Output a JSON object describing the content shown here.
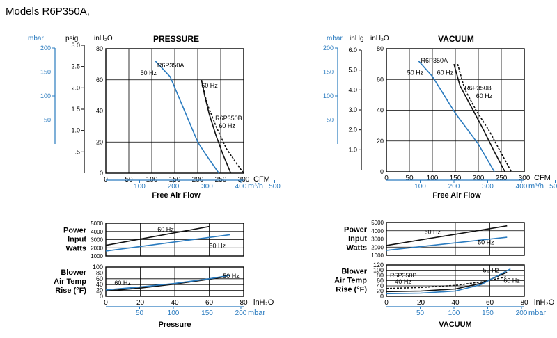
{
  "page": {
    "title": "Models R6P350A,"
  },
  "colors": {
    "blue": "#2a7bbf",
    "black": "#111111",
    "grid": "#000000"
  },
  "chart_data": [
    {
      "id": "pressure_main",
      "type": "line",
      "title": "PRESSURE",
      "xlabel": "Free Air Flow",
      "xlim": [
        0,
        300
      ],
      "ylim": [
        0,
        80
      ],
      "x_ticks": [
        0,
        50,
        100,
        150,
        200,
        250,
        300
      ],
      "y_ticks": [
        0,
        20,
        40,
        60,
        80
      ],
      "x_unit": "CFM",
      "y_unit": "inH2O",
      "grid": true,
      "alt_x_axis": {
        "unit": "m3/h",
        "ticks": [
          "100",
          "200",
          "300",
          "400",
          "500"
        ]
      },
      "alt_y_axes": [
        {
          "unit": "psig",
          "ticks": [
            ".5",
            "1.0",
            "1.5",
            "2.0",
            "2.5",
            "3.0"
          ]
        },
        {
          "unit": "mbar",
          "ticks": [
            "50",
            "100",
            "150",
            "200"
          ]
        }
      ],
      "series": [
        {
          "name": "R6P350A",
          "color": "blue",
          "dash": "solid",
          "points": [
            [
              108,
              72
            ],
            [
              140,
              62
            ],
            [
              160,
              48
            ],
            [
              180,
              34
            ],
            [
              200,
              20
            ],
            [
              220,
              11
            ],
            [
              246,
              0
            ]
          ]
        },
        {
          "name": "R6P350A",
          "color": "black",
          "dash": "solid",
          "points": [
            [
              208,
              60
            ],
            [
              215,
              50
            ],
            [
              225,
              38
            ],
            [
              240,
              24
            ],
            [
              255,
              12
            ],
            [
              272,
              0
            ]
          ]
        },
        {
          "name": "R6P350B",
          "color": "black",
          "dash": "dashed",
          "points": [
            [
              208,
              60
            ],
            [
              220,
              45
            ],
            [
              240,
              30
            ],
            [
              262,
              16
            ],
            [
              285,
              6
            ],
            [
              300,
              0
            ]
          ]
        }
      ],
      "annotations": [
        {
          "text": "R6P350A",
          "x": 112,
          "y": 68
        },
        {
          "text": "50 Hz",
          "x": 75,
          "y": 63
        },
        {
          "text": "60 Hz",
          "x": 208,
          "y": 55
        },
        {
          "text": "R6P350B",
          "x": 238,
          "y": 34
        },
        {
          "text": "60 Hz",
          "x": 246,
          "y": 29
        }
      ]
    },
    {
      "id": "vacuum_main",
      "type": "line",
      "title": "VACUUM",
      "xlabel": "Free Air Flow",
      "xlim": [
        0,
        300
      ],
      "ylim": [
        0,
        80
      ],
      "x_ticks": [
        0,
        50,
        100,
        150,
        200,
        250,
        300
      ],
      "y_ticks": [
        0,
        20,
        40,
        60,
        80
      ],
      "x_unit": "CFM",
      "y_unit": "inH2O",
      "grid": true,
      "alt_x_axis": {
        "unit": "m3/h",
        "ticks": [
          "100",
          "200",
          "300",
          "400",
          "500"
        ]
      },
      "alt_y_axes": [
        {
          "unit": "inHg",
          "ticks": [
            "1.0",
            "2.0",
            "3.0",
            "4.0",
            "5.0",
            "6.0"
          ]
        },
        {
          "unit": "mbar",
          "ticks": [
            "50",
            "100",
            "150",
            "200"
          ]
        }
      ],
      "series": [
        {
          "name": "R6P350A",
          "color": "blue",
          "dash": "solid",
          "points": [
            [
              70,
              72
            ],
            [
              100,
              62
            ],
            [
              150,
              38
            ],
            [
              200,
              18
            ],
            [
              235,
              0
            ]
          ]
        },
        {
          "name": "R6P350A",
          "color": "black",
          "dash": "solid",
          "points": [
            [
              147,
              70
            ],
            [
              160,
              56
            ],
            [
              185,
              42
            ],
            [
              210,
              28
            ],
            [
              235,
              13
            ],
            [
              258,
              0
            ]
          ]
        },
        {
          "name": "R6P350B",
          "color": "black",
          "dash": "dashed",
          "points": [
            [
              155,
              70
            ],
            [
              170,
              54
            ],
            [
              195,
              40
            ],
            [
              225,
              26
            ],
            [
              250,
              12
            ],
            [
              272,
              0
            ]
          ]
        }
      ],
      "annotations": [
        {
          "text": "R6P350A",
          "x": 75,
          "y": 71
        },
        {
          "text": "50 Hz",
          "x": 45,
          "y": 63
        },
        {
          "text": "60 Hz",
          "x": 110,
          "y": 63
        },
        {
          "text": "R6P350B",
          "x": 170,
          "y": 53
        },
        {
          "text": "60 Hz",
          "x": 195,
          "y": 48
        }
      ]
    },
    {
      "id": "pressure_power",
      "type": "line",
      "title": "",
      "ylabel": [
        "Power",
        "Input",
        "Watts"
      ],
      "xlim": [
        0,
        80
      ],
      "ylim": [
        1000,
        5000
      ],
      "y_ticks": [
        1000,
        2000,
        3000,
        4000,
        5000
      ],
      "grid": true,
      "series": [
        {
          "name": "60 Hz",
          "color": "black",
          "dash": "solid",
          "points": [
            [
              0,
              2300
            ],
            [
              60,
              4600
            ]
          ]
        },
        {
          "name": "50 Hz",
          "color": "blue",
          "dash": "solid",
          "points": [
            [
              0,
              1600
            ],
            [
              72,
              3600
            ]
          ]
        }
      ],
      "annotations": [
        {
          "text": "60 Hz",
          "x": 30,
          "y": 4000
        },
        {
          "text": "50 Hz",
          "x": 60,
          "y": 2000
        }
      ]
    },
    {
      "id": "pressure_temp",
      "type": "line",
      "title": "",
      "ylabel": [
        "Blower",
        "Air Temp",
        "Rise (°F)"
      ],
      "xlim": [
        0,
        80
      ],
      "ylim": [
        0,
        100
      ],
      "x_ticks": [
        0,
        20,
        40,
        60,
        80
      ],
      "y_ticks": [
        0,
        20,
        40,
        60,
        80,
        100
      ],
      "x_unit": "inH2O",
      "xlabel": "Pressure",
      "alt_x_axis": {
        "unit": "mbar",
        "ticks": [
          "50",
          "100",
          "150",
          "200"
        ]
      },
      "grid": true,
      "series": [
        {
          "name": "60 Hz",
          "color": "black",
          "dash": "solid",
          "points": [
            [
              0,
              18
            ],
            [
              20,
              28
            ],
            [
              40,
              42
            ],
            [
              60,
              58
            ],
            [
              70,
              68
            ]
          ]
        },
        {
          "name": "50 Hz",
          "color": "blue",
          "dash": "solid",
          "points": [
            [
              0,
              22
            ],
            [
              20,
              32
            ],
            [
              40,
              44
            ],
            [
              60,
              60
            ],
            [
              72,
              72
            ]
          ]
        }
      ],
      "annotations": [
        {
          "text": "60 Hz",
          "x": 5,
          "y": 38
        },
        {
          "text": "50 Hz",
          "x": 68,
          "y": 62
        }
      ]
    },
    {
      "id": "vacuum_power",
      "type": "line",
      "title": "",
      "ylabel": [
        "Power",
        "Input",
        "Watts"
      ],
      "xlim": [
        0,
        80
      ],
      "ylim": [
        1000,
        5000
      ],
      "y_ticks": [
        1000,
        2000,
        3000,
        4000,
        5000
      ],
      "grid": true,
      "series": [
        {
          "name": "60 Hz",
          "color": "black",
          "dash": "solid",
          "points": [
            [
              0,
              2200
            ],
            [
              70,
              4600
            ]
          ]
        },
        {
          "name": "50 Hz",
          "color": "blue",
          "dash": "solid",
          "points": [
            [
              0,
              1600
            ],
            [
              70,
              3200
            ]
          ]
        }
      ],
      "annotations": [
        {
          "text": "60 Hz",
          "x": 22,
          "y": 3600
        },
        {
          "text": "50 Hz",
          "x": 53,
          "y": 2300
        }
      ]
    },
    {
      "id": "vacuum_temp",
      "type": "line",
      "title": "",
      "ylabel": [
        "Blower",
        "Air Temp",
        "Rise (°F)"
      ],
      "xlim": [
        0,
        80
      ],
      "ylim": [
        0,
        120
      ],
      "x_ticks": [
        0,
        20,
        40,
        60,
        80
      ],
      "y_ticks": [
        0,
        20,
        40,
        60,
        80,
        100,
        120
      ],
      "x_unit": "inH2O",
      "xlabel": "VACUUM",
      "alt_x_axis": {
        "unit": "mbar",
        "ticks": [
          "50",
          "100",
          "150",
          "200"
        ]
      },
      "grid": true,
      "series": [
        {
          "name": "R6P350B 40 Hz",
          "color": "black",
          "dash": "dashed",
          "points": [
            [
              0,
              30
            ],
            [
              20,
              34
            ],
            [
              40,
              42
            ],
            [
              55,
              55
            ],
            [
              70,
              75
            ]
          ]
        },
        {
          "name": "60 Hz",
          "color": "black",
          "dash": "solid",
          "points": [
            [
              0,
              18
            ],
            [
              20,
              20
            ],
            [
              40,
              28
            ],
            [
              55,
              50
            ],
            [
              70,
              92
            ]
          ]
        },
        {
          "name": "50 Hz",
          "color": "blue",
          "dash": "solid",
          "points": [
            [
              0,
              10
            ],
            [
              20,
              12
            ],
            [
              40,
              20
            ],
            [
              55,
              45
            ],
            [
              72,
              105
            ]
          ]
        }
      ],
      "annotations": [
        {
          "text": "R6P350B",
          "x": 2,
          "y": 72
        },
        {
          "text": "40 Hz",
          "x": 5,
          "y": 48
        },
        {
          "text": "50 Hz",
          "x": 56,
          "y": 92
        },
        {
          "text": "60 Hz",
          "x": 68,
          "y": 52
        }
      ]
    }
  ]
}
